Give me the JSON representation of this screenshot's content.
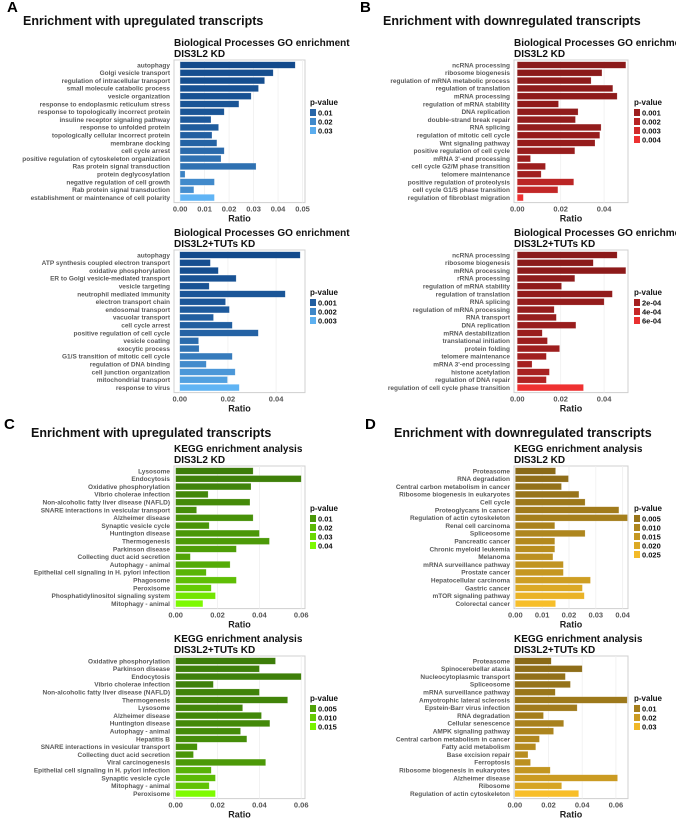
{
  "panels": [
    {
      "letter": "A",
      "title": "Enrichment with upregulated transcripts"
    },
    {
      "letter": "B",
      "title": "Enrichment with downregulated transcripts"
    },
    {
      "letter": "C",
      "title": "Enrichment with upregulated transcripts"
    },
    {
      "letter": "D",
      "title": "Enrichment with downregulated transcripts"
    }
  ],
  "chart_data": [
    {
      "id": "A1",
      "type": "bar",
      "orientation": "horizontal",
      "title": "Biological Processes GO enrichment",
      "subtitle": "DIS3L2 KD",
      "xlabel": "Ratio",
      "xlim": [
        -0.0025,
        0.051
      ],
      "xticks": [
        0.0,
        0.01,
        0.02,
        0.03,
        0.04,
        0.05
      ],
      "tick_decimals": 2,
      "legend_title": "p-value",
      "legend_values": [
        "0.01",
        "0.02",
        "0.03"
      ],
      "p_range": [
        0.002,
        0.033
      ],
      "colors": [
        "#124a8c",
        "#63b8f8"
      ],
      "categories": [
        "autophagy",
        "Golgi vesicle transport",
        "regulation of intracellular transport",
        "small molecule catabolic process",
        "vesicle organization",
        "response to endoplasmic reticulum stress",
        "response to topologically incorrect protein",
        "insuline receptor signaling pathway",
        "response to unfolded protein",
        "topologically cellular incorrect protein",
        "membrane docking",
        "cell cycle arrest",
        "positive regulation of cytoskeleton organization",
        "Ras protein signal transduction",
        "protein deglycosylation",
        "negative regulation of cell growth",
        "Rab protein signal transduction",
        "establishment or maintenance of cell polarity"
      ],
      "values": [
        0.047,
        0.038,
        0.0345,
        0.032,
        0.029,
        0.024,
        0.018,
        0.0126,
        0.0157,
        0.013,
        0.015,
        0.018,
        0.0167,
        0.031,
        0.002,
        0.014,
        0.0056,
        0.014
      ],
      "pvalues": [
        0.002,
        0.003,
        0.003,
        0.004,
        0.004,
        0.005,
        0.005,
        0.006,
        0.007,
        0.008,
        0.009,
        0.011,
        0.013,
        0.013,
        0.018,
        0.02,
        0.021,
        0.032
      ]
    },
    {
      "id": "A2",
      "type": "bar",
      "orientation": "horizontal",
      "title": "Biological Processes GO enrichment",
      "subtitle": "DIS3L2+TUTs KD",
      "xlabel": "Ratio",
      "xlim": [
        -0.0024,
        0.052
      ],
      "xticks": [
        0.0,
        0.02,
        0.04
      ],
      "tick_decimals": 2,
      "legend_title": "p-value",
      "legend_values": [
        "0.001",
        "0.002",
        "0.003"
      ],
      "p_range": [
        0.0005,
        0.0032
      ],
      "colors": [
        "#124a8c",
        "#63b8f8"
      ],
      "categories": [
        "autophagy",
        "ATP synthesis coupled electron transport",
        "oxidative phosphorylation",
        "ER to Golgi vesicle-mediated transport",
        "vesicle targeting",
        "neutrophil mediated immunity",
        "electron transport chain",
        "endosomal transport",
        "vacuolar transport",
        "cell cycle arrest",
        "positive regulation of cell cycle",
        "vesicle coating",
        "exocytic process",
        "G1/S transition of mitotic cell cycle",
        "regulation of DNA binding",
        "cell junction organization",
        "mitochondrial transport",
        "response to virus"
      ],
      "values": [
        0.05,
        0.0127,
        0.016,
        0.0234,
        0.0122,
        0.0438,
        0.019,
        0.0206,
        0.014,
        0.0218,
        0.0326,
        0.0078,
        0.008,
        0.0218,
        0.011,
        0.023,
        0.0198,
        0.0247
      ],
      "pvalues": [
        0.0005,
        0.0006,
        0.0006,
        0.0007,
        0.0007,
        0.0008,
        0.0008,
        0.0009,
        0.001,
        0.001,
        0.0011,
        0.0013,
        0.0015,
        0.0017,
        0.0021,
        0.0024,
        0.0026,
        0.0031
      ]
    },
    {
      "id": "B1",
      "type": "bar",
      "orientation": "horizontal",
      "title": "Biological Processes GO enrichment",
      "subtitle": "DIS3L2 KD",
      "xlabel": "Ratio",
      "xlim": [
        -0.0015,
        0.051
      ],
      "xticks": [
        0.0,
        0.02,
        0.04
      ],
      "tick_decimals": 2,
      "legend_title": "p-value",
      "legend_values": [
        "0.001",
        "0.002",
        "0.003",
        "0.004"
      ],
      "p_range": [
        0.0003,
        0.0042
      ],
      "colors": [
        "#8b1a1a",
        "#f23232"
      ],
      "categories": [
        "ncRNA processing",
        "ribosome biogenesis",
        "regulation of mRNA metabolic process",
        "regulation of translation",
        "mRNA processing",
        "regulation of mRNA stability",
        "DNA replication",
        "double-strand break repair",
        "RNA splicing",
        "regulation of mitotic cell cycle",
        "Wnt signaling pathway",
        "positive regulation of cell cycle",
        "mRNA 3'-end processing",
        "cell cycle G2/M phase transition",
        "telomere maintenance",
        "positive regulation of proteolysis",
        "cell cycle G1/S phase transition",
        "regulation of fibroblast migration"
      ],
      "values": [
        0.05,
        0.039,
        0.034,
        0.044,
        0.046,
        0.019,
        0.028,
        0.0268,
        0.0386,
        0.038,
        0.0358,
        0.0265,
        0.0061,
        0.013,
        0.011,
        0.026,
        0.0187,
        0.0028
      ],
      "pvalues": [
        0.0003,
        0.0003,
        0.0004,
        0.0004,
        0.0004,
        0.0005,
        0.0005,
        0.0006,
        0.0006,
        0.0007,
        0.0007,
        0.0008,
        0.0009,
        0.001,
        0.0011,
        0.0021,
        0.0024,
        0.0041
      ]
    },
    {
      "id": "B2",
      "type": "bar",
      "orientation": "horizontal",
      "title": "Biological Processes GO enrichment",
      "subtitle": "DIS3L2+TUTs KD",
      "xlabel": "Ratio",
      "xlim": [
        -0.0015,
        0.051
      ],
      "xticks": [
        0.0,
        0.02,
        0.04
      ],
      "tick_decimals": 2,
      "legend_title": "p-value",
      "legend_values": [
        "2e-04",
        "4e-04",
        "6e-04"
      ],
      "p_range": [
        5e-05,
        0.00065
      ],
      "colors": [
        "#8b1a1a",
        "#f23232"
      ],
      "categories": [
        "ncRNA processing",
        "ribosome biogenesis",
        "mRNA processing",
        "rRNA processing",
        "regulation of mRNA stability",
        "regulation of translation",
        "RNA splicing",
        "regulation of mRNA processing",
        "RNA transport",
        "DNA replication",
        "mRNA destabilization",
        "translational initiation",
        "protein folding",
        "telomere maintenance",
        "mRNA 3'-end processing",
        "histone acetylation",
        "regulation of DNA repair",
        "regulation of cell cycle phase transition"
      ],
      "values": [
        0.046,
        0.035,
        0.05,
        0.0265,
        0.0204,
        0.0438,
        0.04,
        0.017,
        0.018,
        0.027,
        0.0115,
        0.0139,
        0.0195,
        0.0134,
        0.0068,
        0.0148,
        0.0134,
        0.0305
      ],
      "pvalues": [
        5e-05,
        5e-05,
        6e-05,
        7e-05,
        8e-05,
        9e-05,
        0.0001,
        0.00011,
        0.00012,
        0.00013,
        0.00014,
        0.00015,
        0.00016,
        0.00018,
        0.0002,
        0.00022,
        0.00026,
        0.00063
      ]
    },
    {
      "id": "C1",
      "type": "bar",
      "orientation": "horizontal",
      "title": "KEGG enrichment analysis",
      "subtitle": "DIS3L2 KD",
      "xlabel": "Ratio",
      "xlim": [
        -0.0008,
        0.0618
      ],
      "xticks": [
        0.0,
        0.02,
        0.04,
        0.06
      ],
      "tick_decimals": 2,
      "legend_title": "p-value",
      "legend_values": [
        "0.01",
        "0.02",
        "0.03",
        "0.04"
      ],
      "p_range": [
        0.002,
        0.042
      ],
      "colors": [
        "#3d7d0a",
        "#80ff00"
      ],
      "categories": [
        "Lysosome",
        "Endocytosis",
        "Oxidative phosphorylation",
        "Vibrio cholerae infection",
        "Non-alcoholic fatty liver disease (NAFLD)",
        "SNARE interactions in vesicular transport",
        "Alzheimer disease",
        "Synaptic vesicle cycle",
        "Huntington disease",
        "Thermogenesis",
        "Parkinson disease",
        "Collecting duct acid secretion",
        "Autophagy - animal",
        "Epithelial cell signaling in H. pylori infection",
        "Phagosome",
        "Peroxisome",
        "Phosphatidylinositol signaling system",
        "Mitophagy - animal"
      ],
      "values": [
        0.037,
        0.06,
        0.036,
        0.0155,
        0.0355,
        0.01,
        0.037,
        0.016,
        0.04,
        0.0448,
        0.029,
        0.007,
        0.026,
        0.0146,
        0.029,
        0.017,
        0.019,
        0.013
      ],
      "pvalues": [
        0.002,
        0.003,
        0.004,
        0.005,
        0.006,
        0.007,
        0.008,
        0.009,
        0.01,
        0.011,
        0.012,
        0.014,
        0.016,
        0.019,
        0.022,
        0.026,
        0.034,
        0.04
      ]
    },
    {
      "id": "C2",
      "type": "bar",
      "orientation": "horizontal",
      "title": "KEGG enrichment analysis",
      "subtitle": "DIS3L2+TUTs KD",
      "xlabel": "Ratio",
      "xlim": [
        -0.0008,
        0.0618
      ],
      "xticks": [
        0.0,
        0.02,
        0.04,
        0.06
      ],
      "tick_decimals": 2,
      "legend_title": "p-value",
      "legend_values": [
        "0.005",
        "0.010",
        "0.015"
      ],
      "p_range": [
        0.0005,
        0.0165
      ],
      "colors": [
        "#3d7d0a",
        "#80ff00"
      ],
      "categories": [
        "Oxidative phosphorylation",
        "Parkinson disease",
        "Endocytosis",
        "Vibrio cholerae infection",
        "Non-alcoholic fatty liver disease (NAFLD)",
        "Thermogenesis",
        "Lysosome",
        "Alzheimer disease",
        "Huntington disease",
        "Autophagy - animal",
        "Hepatitis B",
        "SNARE interactions in vesicular transport",
        "Collecting duct acid secretion",
        "Viral carcinogenesis",
        "Epithelial cell signaling in H. pylori infection",
        "Synaptic vesicle cycle",
        "Mitophagy - animal",
        "Peroxisome"
      ],
      "values": [
        0.0477,
        0.04,
        0.06,
        0.018,
        0.04,
        0.0535,
        0.032,
        0.041,
        0.045,
        0.031,
        0.034,
        0.0103,
        0.0085,
        0.043,
        0.017,
        0.019,
        0.016,
        0.019
      ],
      "pvalues": [
        0.0005,
        0.0007,
        0.0009,
        0.001,
        0.0012,
        0.0014,
        0.0016,
        0.0018,
        0.002,
        0.0022,
        0.0025,
        0.003,
        0.0035,
        0.004,
        0.007,
        0.008,
        0.009,
        0.016
      ]
    },
    {
      "id": "D1",
      "type": "bar",
      "orientation": "horizontal",
      "title": "KEGG enrichment analysis",
      "subtitle": "DIS3L2 KD",
      "xlabel": "Ratio",
      "xlim": [
        -0.0005,
        0.042
      ],
      "xticks": [
        0.0,
        0.01,
        0.02,
        0.03,
        0.04
      ],
      "tick_decimals": 2,
      "legend_title": "p-value",
      "legend_values": [
        "0.005",
        "0.010",
        "0.015",
        "0.020",
        "0.025"
      ],
      "p_range": [
        0.002,
        0.027
      ],
      "colors": [
        "#8a6a18",
        "#fcc12a"
      ],
      "categories": [
        "Proteasome",
        "RNA degradation",
        "Central carbon metabolism in cancer",
        "Ribosome biogenesis in eukaryotes",
        "Cell cycle",
        "Proteoglycans in cancer",
        "Regulation of actin cytoskeleton",
        "Renal cell carcinoma",
        "Spliceosome",
        "Pancreatic cancer",
        "Chronic myeloid leukemia",
        "Melanoma",
        "mRNA surveillance pathway",
        "Prostate cancer",
        "Hepatocellular carcinoma",
        "Gastric cancer",
        "mTOR signaling pathway",
        "Colorectal cancer"
      ],
      "values": [
        0.015,
        0.0198,
        0.0172,
        0.0237,
        0.026,
        0.0386,
        0.0418,
        0.0147,
        0.026,
        0.0147,
        0.0147,
        0.014,
        0.0179,
        0.0179,
        0.028,
        0.025,
        0.0257,
        0.015
      ],
      "pvalues": [
        0.002,
        0.003,
        0.004,
        0.005,
        0.006,
        0.007,
        0.008,
        0.009,
        0.01,
        0.011,
        0.012,
        0.013,
        0.014,
        0.015,
        0.017,
        0.02,
        0.023,
        0.026
      ]
    },
    {
      "id": "D2",
      "type": "bar",
      "orientation": "horizontal",
      "title": "KEGG enrichment analysis",
      "subtitle": "DIS3L2+TUTs KD",
      "xlabel": "Ratio",
      "xlim": [
        -0.0005,
        0.0672
      ],
      "xticks": [
        0.0,
        0.02,
        0.04,
        0.06
      ],
      "tick_decimals": 2,
      "legend_title": "p-value",
      "legend_values": [
        "0.01",
        "0.02",
        "0.03"
      ],
      "p_range": [
        0.003,
        0.033
      ],
      "colors": [
        "#8a6a18",
        "#fcc12a"
      ],
      "categories": [
        "Proteasome",
        "Spinocerebellar ataxia",
        "Nucleocytoplasmic transport",
        "Spliceosome",
        "mRNA surveillance pathway",
        "Amyotrophic lateral sclerosis",
        "Epstein-Barr virus infection",
        "RNA degradation",
        "Cellular senescence",
        "AMPK signaling pathway",
        "Central carbon metabolism in cancer",
        "Fatty acid metabolism",
        "Base excision repair",
        "Ferroptosis",
        "Ribosome biogenesis in eukaryotes",
        "Alzheimer disease",
        "Ribosome",
        "Regulation of actin cytoskeleton"
      ],
      "values": [
        0.0216,
        0.04,
        0.03,
        0.033,
        0.024,
        0.0667,
        0.037,
        0.017,
        0.029,
        0.023,
        0.0146,
        0.0124,
        0.0078,
        0.0093,
        0.021,
        0.061,
        0.0278,
        0.0379
      ],
      "pvalues": [
        0.003,
        0.004,
        0.005,
        0.006,
        0.007,
        0.008,
        0.009,
        0.01,
        0.011,
        0.012,
        0.013,
        0.014,
        0.015,
        0.016,
        0.018,
        0.02,
        0.023,
        0.032
      ]
    }
  ]
}
